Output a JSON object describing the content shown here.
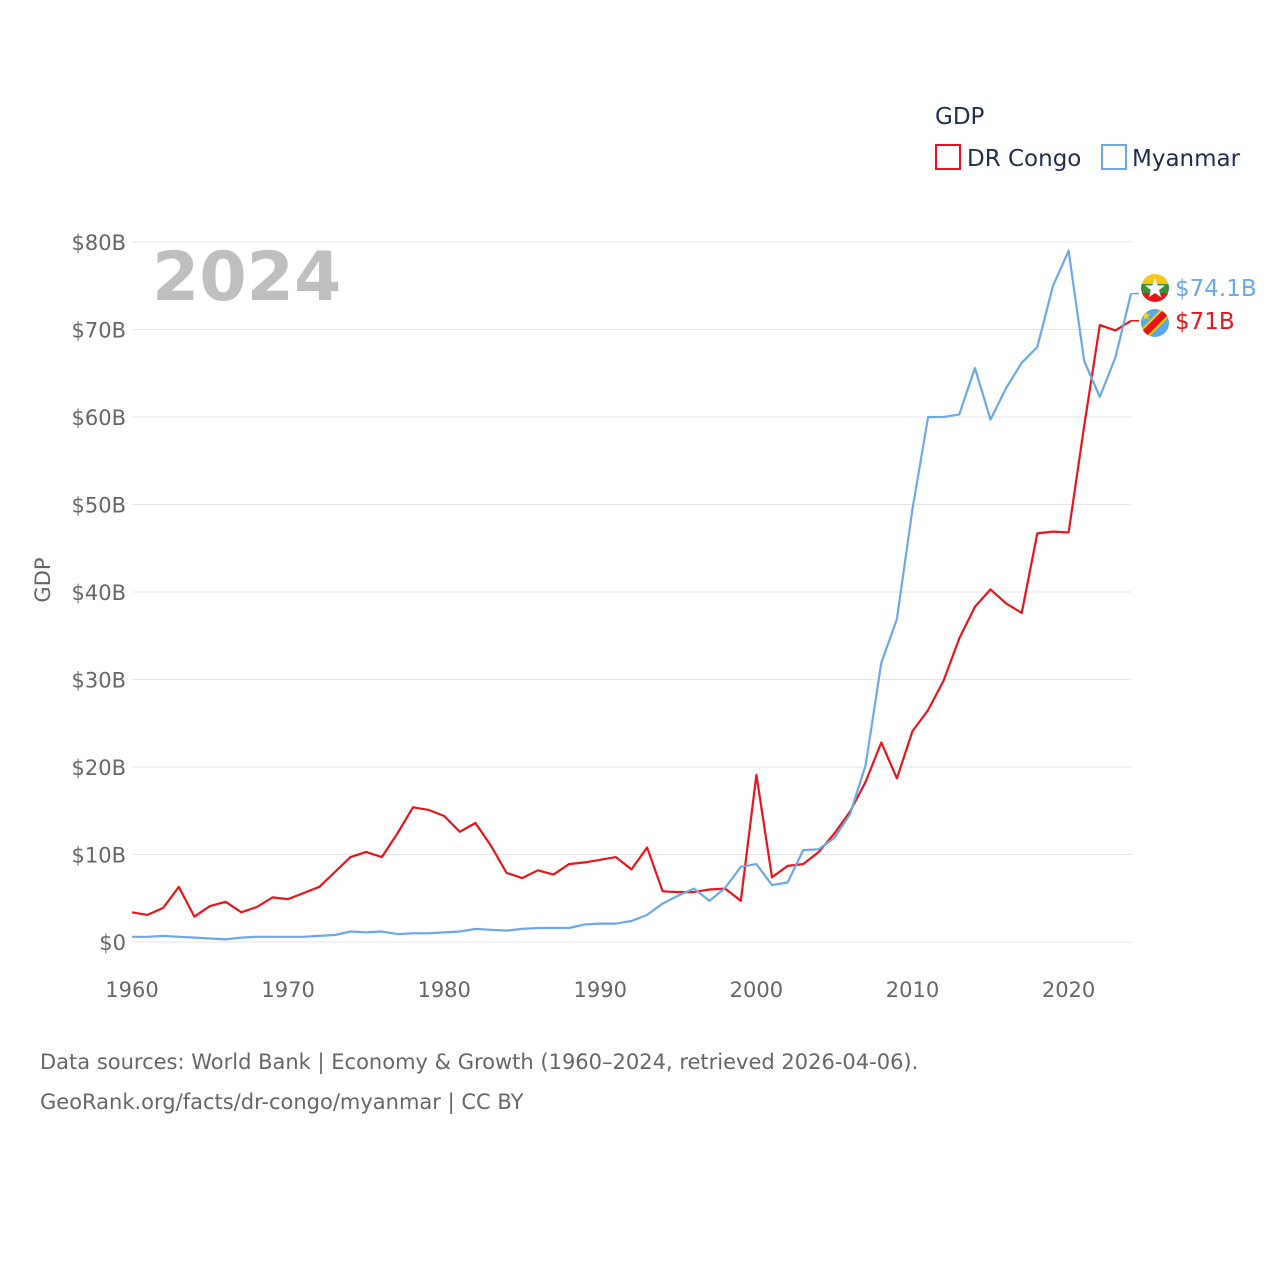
{
  "colors": {
    "dr_congo": "#e8141b",
    "myanmar": "#6aa9e6",
    "year_label": "#bfbfbf",
    "axis_text": "#666666",
    "legend_text": "#1f2d4d"
  },
  "legend": {
    "title": "GDP",
    "items": [
      "DR Congo",
      "Myanmar"
    ]
  },
  "year_label": "2024",
  "end_labels": {
    "myanmar": "$74.1B",
    "dr_congo": "$71B"
  },
  "chart_data": {
    "type": "line",
    "title": "GDP",
    "xlabel": "",
    "ylabel": "GDP",
    "xlim": [
      1960,
      2024
    ],
    "ylim": [
      0,
      80
    ],
    "y_unit": "billions USD",
    "x_ticks": [
      1960,
      1970,
      1980,
      1990,
      2000,
      2010,
      2020
    ],
    "x_tick_labels": [
      "1960",
      "1970",
      "1980",
      "1990",
      "2000",
      "2010",
      "2020"
    ],
    "y_ticks": [
      0,
      10,
      20,
      30,
      40,
      50,
      60,
      70,
      80
    ],
    "y_tick_labels": [
      "$0",
      "$10B",
      "$20B",
      "$30B",
      "$40B",
      "$50B",
      "$60B",
      "$70B",
      "$80B"
    ],
    "grid": true,
    "legend_position": "top-right",
    "x": [
      1960,
      1961,
      1962,
      1963,
      1964,
      1965,
      1966,
      1967,
      1968,
      1969,
      1970,
      1971,
      1972,
      1973,
      1974,
      1975,
      1976,
      1977,
      1978,
      1979,
      1980,
      1981,
      1982,
      1983,
      1984,
      1985,
      1986,
      1987,
      1988,
      1989,
      1990,
      1991,
      1992,
      1993,
      1994,
      1995,
      1996,
      1997,
      1998,
      1999,
      2000,
      2001,
      2002,
      2003,
      2004,
      2005,
      2006,
      2007,
      2008,
      2009,
      2010,
      2011,
      2012,
      2013,
      2014,
      2015,
      2016,
      2017,
      2018,
      2019,
      2020,
      2021,
      2022,
      2023,
      2024
    ],
    "series": [
      {
        "name": "DR Congo",
        "color": "#e8141b",
        "values": [
          3.4,
          3.1,
          3.9,
          6.3,
          2.9,
          4.1,
          4.6,
          3.4,
          4.0,
          5.1,
          4.9,
          5.6,
          6.3,
          8.0,
          9.7,
          10.3,
          9.7,
          12.4,
          15.4,
          15.1,
          14.4,
          12.6,
          13.6,
          11.0,
          7.9,
          7.3,
          8.2,
          7.7,
          8.9,
          9.1,
          9.4,
          9.7,
          8.3,
          10.8,
          5.8,
          5.7,
          5.7,
          6.0,
          6.1,
          4.7,
          19.1,
          7.4,
          8.7,
          8.9,
          10.3,
          12.4,
          14.9,
          18.3,
          22.8,
          18.7,
          24.1,
          26.5,
          29.9,
          34.7,
          38.3,
          40.3,
          38.7,
          37.6,
          46.7,
          46.9,
          46.8,
          59.0,
          70.5,
          69.9,
          71.0
        ]
      },
      {
        "name": "Myanmar",
        "color": "#6aa9e6",
        "values": [
          0.6,
          0.6,
          0.7,
          0.6,
          0.5,
          0.4,
          0.3,
          0.5,
          0.6,
          0.6,
          0.6,
          0.6,
          0.7,
          0.8,
          1.2,
          1.1,
          1.2,
          0.9,
          1.0,
          1.0,
          1.1,
          1.2,
          1.5,
          1.4,
          1.3,
          1.5,
          1.6,
          1.6,
          1.6,
          2.0,
          2.1,
          2.1,
          2.4,
          3.1,
          4.4,
          5.3,
          6.1,
          4.7,
          6.2,
          8.6,
          8.9,
          6.5,
          6.8,
          10.5,
          10.6,
          11.9,
          14.6,
          20.2,
          31.9,
          36.9,
          49.5,
          60.0,
          60.0,
          60.3,
          65.6,
          59.7,
          63.3,
          66.2,
          68.0,
          75.0,
          79.0,
          66.4,
          62.3,
          66.8,
          74.1
        ]
      }
    ]
  },
  "footer": {
    "line1": "Data sources: World Bank | Economy & Growth (1960–2024, retrieved 2026-04-06).",
    "line2": "GeoRank.org/facts/dr-congo/myanmar | CC BY"
  }
}
